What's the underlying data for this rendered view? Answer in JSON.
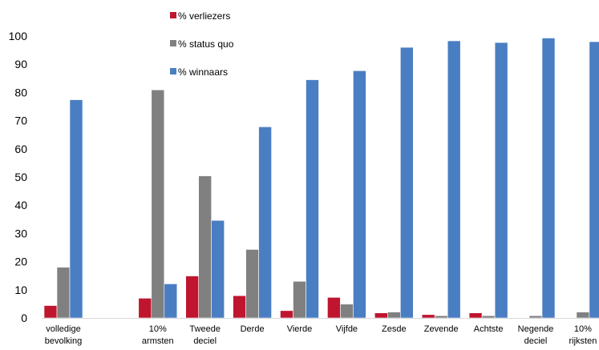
{
  "chart_data": {
    "type": "bar",
    "title": "",
    "xlabel": "",
    "ylabel": "",
    "ylim": [
      0,
      100
    ],
    "yticks": [
      0,
      10,
      20,
      30,
      40,
      50,
      60,
      70,
      80,
      90,
      100
    ],
    "grid": false,
    "legend_position": "top-left",
    "categories": [
      [
        "volledige",
        "bevolking"
      ],
      [],
      [
        "10%",
        "armsten"
      ],
      [
        "Tweede",
        "deciel"
      ],
      [
        "Derde"
      ],
      [
        "Vierde"
      ],
      [
        "Vijfde"
      ],
      [
        "Zesde"
      ],
      [
        "Zevende"
      ],
      [
        "Achtste"
      ],
      [
        "Negende",
        "deciel"
      ],
      [
        "10%",
        "rijksten"
      ]
    ],
    "series": [
      {
        "name": "% verliezers",
        "color": "#c0152f",
        "values": [
          4.4,
          null,
          7.0,
          14.9,
          7.9,
          2.6,
          7.3,
          1.8,
          1.2,
          1.8,
          0,
          0
        ]
      },
      {
        "name": "% status quo",
        "color": "#808080",
        "values": [
          18.0,
          null,
          80.9,
          50.4,
          24.3,
          13.0,
          4.9,
          2.1,
          0.8,
          0.8,
          0.8,
          2.1
        ]
      },
      {
        "name": "% winnaars",
        "color": "#4a7ec2",
        "values": [
          77.4,
          null,
          12.1,
          34.6,
          67.8,
          84.5,
          87.7,
          96.0,
          98.3,
          97.7,
          99.3,
          98.0
        ]
      }
    ]
  }
}
